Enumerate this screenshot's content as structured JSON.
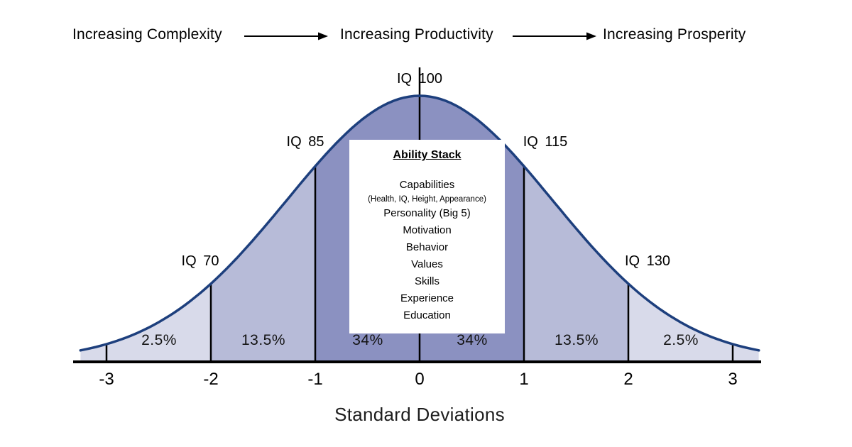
{
  "header": {
    "complexity": "Increasing Complexity",
    "productivity": "Increasing Productivity",
    "prosperity": "Increasing Prosperity"
  },
  "chart_data": {
    "type": "area",
    "xlabel": "Standard Deviations",
    "xlim": [
      -3.25,
      3.25
    ],
    "x_ticks": [
      "-3",
      "-2",
      "-1",
      "0",
      "1",
      "2",
      "3"
    ],
    "segments": [
      {
        "from_sd": -3,
        "to_sd": -2,
        "percent_label": "2.5%",
        "value": 2.5
      },
      {
        "from_sd": -2,
        "to_sd": -1,
        "percent_label": "13.5%",
        "value": 13.5
      },
      {
        "from_sd": -1,
        "to_sd": 0,
        "percent_label": "34%",
        "value": 34
      },
      {
        "from_sd": 0,
        "to_sd": 1,
        "percent_label": "34%",
        "value": 34
      },
      {
        "from_sd": 1,
        "to_sd": 2,
        "percent_label": "13.5%",
        "value": 13.5
      },
      {
        "from_sd": 2,
        "to_sd": 3,
        "percent_label": "2.5%",
        "value": 2.5
      }
    ],
    "iq_markers": [
      {
        "sd": 0,
        "label": "IQ 100"
      },
      {
        "sd": -1,
        "label": "IQ 85"
      },
      {
        "sd": 1,
        "label": "IQ 115"
      },
      {
        "sd": -2,
        "label": "IQ 70"
      },
      {
        "sd": 2,
        "label": "IQ 130"
      }
    ]
  },
  "ability_stack": {
    "title": "Ability Stack",
    "items": [
      "Capabilities",
      "(Health, IQ, Height, Appearance)",
      "Personality (Big 5)",
      "Motivation",
      "Behavior",
      "Values",
      "Skills",
      "Experience",
      "Education"
    ]
  },
  "colors": {
    "curve_stroke": "#1d3f7d",
    "fill_inner": "#8b91c1",
    "fill_mid": "#b7bbd8",
    "fill_outer": "#d8daea",
    "axis": "#000000"
  }
}
